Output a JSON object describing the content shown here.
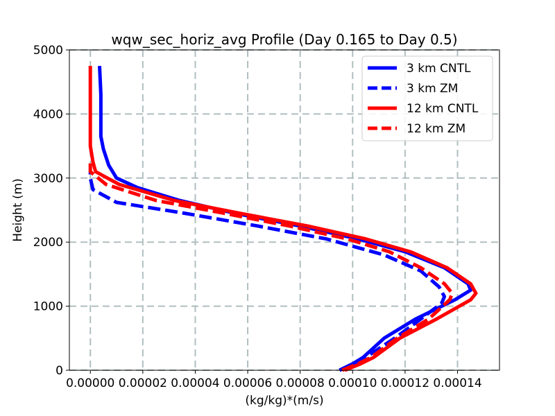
{
  "chart_data": {
    "type": "line",
    "title": "wqw_sec_horiz_avg Profile (Day 0.165 to Day 0.5)",
    "xlabel": "(kg/kg)*(m/s)",
    "ylabel": "Height (m)",
    "xlim": [
      -8e-06,
      0.000156
    ],
    "ylim": [
      0,
      5000
    ],
    "xticks": [
      0.0,
      2e-05,
      4e-05,
      6e-05,
      8e-05,
      0.0001,
      0.00012,
      0.00014
    ],
    "xtick_labels": [
      "0.00000",
      "0.00002",
      "0.00004",
      "0.00006",
      "0.00008",
      "0.00010",
      "0.00012",
      "0.00014"
    ],
    "yticks": [
      0,
      1000,
      2000,
      3000,
      4000,
      5000
    ],
    "ytick_labels": [
      "0",
      "1000",
      "2000",
      "3000",
      "4000",
      "5000"
    ],
    "grid": true,
    "legend_position": "top-right",
    "series": [
      {
        "name": "3 km CNTL",
        "color": "#0000ff",
        "dash": "solid",
        "points": [
          [
            9.5e-05,
            0
          ],
          [
            0.0001,
            100
          ],
          [
            0.000104,
            200
          ],
          [
            0.000112,
            500
          ],
          [
            0.000124,
            800
          ],
          [
            0.000139,
            1100
          ],
          [
            0.000145,
            1250
          ],
          [
            0.000144,
            1350
          ],
          [
            0.000135,
            1600
          ],
          [
            0.00012,
            1850
          ],
          [
            0.000102,
            2050
          ],
          [
            8e-05,
            2250
          ],
          [
            5.5e-05,
            2450
          ],
          [
            3.4e-05,
            2650
          ],
          [
            1.8e-05,
            2850
          ],
          [
            1e-05,
            3000
          ],
          [
            7e-06,
            3200
          ],
          [
            5e-06,
            3450
          ],
          [
            4e-06,
            3650
          ],
          [
            4e-06,
            4000
          ],
          [
            4e-06,
            4300
          ],
          [
            3.5e-06,
            4750
          ]
        ]
      },
      {
        "name": "3 km ZM",
        "color": "#0000ff",
        "dash": "dashed",
        "points": [
          [
            9.5e-05,
            0
          ],
          [
            0.0001,
            100
          ],
          [
            0.000105,
            200
          ],
          [
            0.000116,
            500
          ],
          [
            0.000126,
            800
          ],
          [
            0.000134,
            1050
          ],
          [
            0.000135,
            1150
          ],
          [
            0.000133,
            1300
          ],
          [
            0.000126,
            1550
          ],
          [
            0.000112,
            1800
          ],
          [
            9e-05,
            2050
          ],
          [
            6.4e-05,
            2250
          ],
          [
            3.6e-05,
            2450
          ],
          [
            1e-05,
            2620
          ],
          [
            1e-06,
            2820
          ],
          [
            0.0,
            3000
          ],
          [
            0.0,
            3100
          ]
        ]
      },
      {
        "name": "12 km CNTL",
        "color": "#ff0000",
        "dash": "solid",
        "points": [
          [
            9.7e-05,
            0
          ],
          [
            0.000103,
            100
          ],
          [
            0.000108,
            200
          ],
          [
            0.000118,
            500
          ],
          [
            0.000132,
            800
          ],
          [
            0.000145,
            1100
          ],
          [
            0.000147,
            1200
          ],
          [
            0.000145,
            1350
          ],
          [
            0.000136,
            1600
          ],
          [
            0.000122,
            1850
          ],
          [
            0.000105,
            2050
          ],
          [
            8.3e-05,
            2250
          ],
          [
            5.7e-05,
            2450
          ],
          [
            3.2e-05,
            2650
          ],
          [
            1.1e-05,
            2900
          ],
          [
            2e-06,
            3100
          ],
          [
            1e-06,
            3250
          ],
          [
            0.0,
            3500
          ],
          [
            0.0,
            4000
          ],
          [
            0.0,
            4750
          ]
        ]
      },
      {
        "name": "12 km ZM",
        "color": "#ff0000",
        "dash": "dashed",
        "points": [
          [
            9.6e-05,
            0
          ],
          [
            0.000102,
            100
          ],
          [
            0.000107,
            200
          ],
          [
            0.000117,
            500
          ],
          [
            0.000129,
            800
          ],
          [
            0.000137,
            1100
          ],
          [
            0.000138,
            1200
          ],
          [
            0.000135,
            1350
          ],
          [
            0.000126,
            1600
          ],
          [
            0.000114,
            1850
          ],
          [
            9.8e-05,
            2050
          ],
          [
            7.6e-05,
            2250
          ],
          [
            5.1e-05,
            2450
          ],
          [
            2.5e-05,
            2650
          ],
          [
            6e-06,
            2900
          ],
          [
            0.0,
            3100
          ],
          [
            0.0,
            3300
          ]
        ]
      }
    ]
  }
}
